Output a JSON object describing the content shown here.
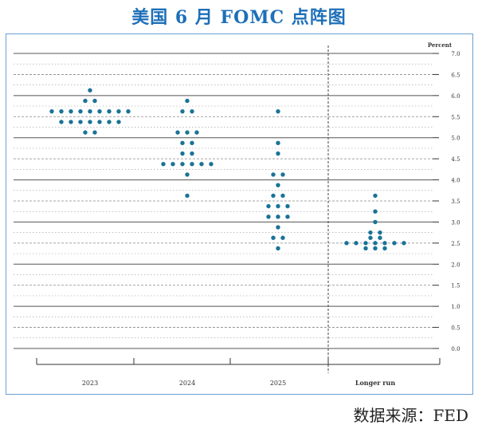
{
  "title": "美国 6 月 FOMC 点阵图",
  "source": "数据来源：FED",
  "chart_data": {
    "type": "scatter",
    "unit_label": "Percent",
    "categories": [
      "2023",
      "2024",
      "2025",
      "Longer run"
    ],
    "ylim": [
      0,
      7
    ],
    "yticks": [
      "7.0",
      "6.5",
      "6.0",
      "5.5",
      "5.0",
      "4.5",
      "4.0",
      "3.5",
      "3.0",
      "2.5",
      "2.0",
      "1.5",
      "1.0",
      "0.5",
      "0.0"
    ],
    "dot_color": "#1a7396",
    "series": [
      {
        "category": "2023",
        "dots": [
          {
            "y": 6.125,
            "n": 1
          },
          {
            "y": 5.875,
            "n": 2
          },
          {
            "y": 5.625,
            "n": 9
          },
          {
            "y": 5.375,
            "n": 7
          },
          {
            "y": 5.125,
            "n": 2
          }
        ]
      },
      {
        "category": "2024",
        "dots": [
          {
            "y": 5.875,
            "n": 1
          },
          {
            "y": 5.625,
            "n": 2
          },
          {
            "y": 5.125,
            "n": 3
          },
          {
            "y": 4.875,
            "n": 2
          },
          {
            "y": 4.625,
            "n": 2
          },
          {
            "y": 4.375,
            "n": 6
          },
          {
            "y": 4.125,
            "n": 1
          },
          {
            "y": 3.625,
            "n": 1
          }
        ]
      },
      {
        "category": "2025",
        "dots": [
          {
            "y": 5.625,
            "n": 1
          },
          {
            "y": 4.875,
            "n": 1
          },
          {
            "y": 4.625,
            "n": 1
          },
          {
            "y": 4.125,
            "n": 2
          },
          {
            "y": 3.875,
            "n": 1
          },
          {
            "y": 3.625,
            "n": 2
          },
          {
            "y": 3.375,
            "n": 3
          },
          {
            "y": 3.125,
            "n": 3
          },
          {
            "y": 2.875,
            "n": 1
          },
          {
            "y": 2.625,
            "n": 2
          },
          {
            "y": 2.375,
            "n": 1
          }
        ]
      },
      {
        "category": "Longer run",
        "dots": [
          {
            "y": 3.625,
            "n": 1
          },
          {
            "y": 3.25,
            "n": 1
          },
          {
            "y": 3.0,
            "n": 1
          },
          {
            "y": 2.75,
            "n": 2
          },
          {
            "y": 2.625,
            "n": 2
          },
          {
            "y": 2.5,
            "n": 7
          },
          {
            "y": 2.375,
            "n": 3
          }
        ]
      }
    ]
  }
}
